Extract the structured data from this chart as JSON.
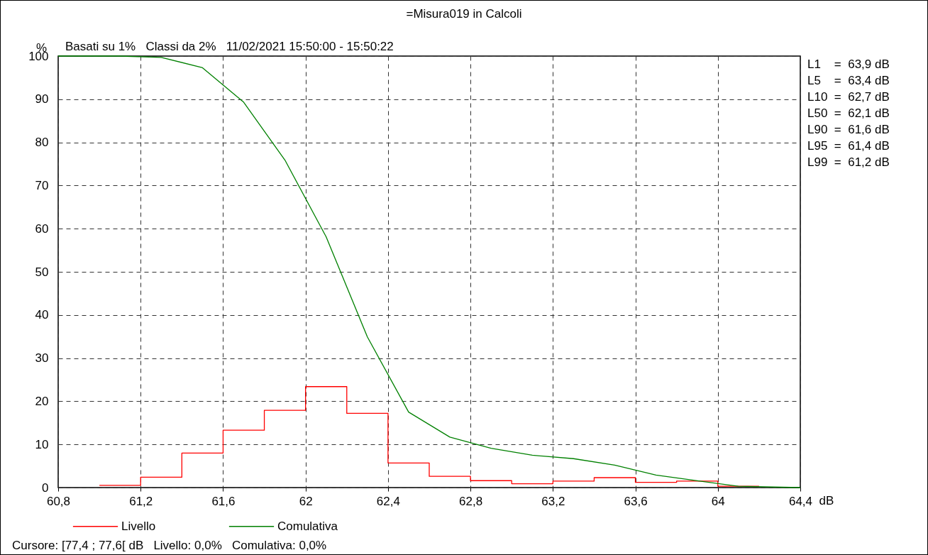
{
  "chart_data": {
    "type": "line",
    "title": "=Misura019 in Calcoli",
    "subtitle": "Basati su 1%   Classi da 2%   11/02/2021 15:50:00 - 15:50:22",
    "xlabel": "dB",
    "ylabel": "%",
    "xlim": [
      60.8,
      64.4
    ],
    "xticks": [
      {
        "value": 60.8,
        "label": "60,8"
      },
      {
        "value": 61.2,
        "label": "61,2"
      },
      {
        "value": 61.6,
        "label": "61,6"
      },
      62,
      {
        "value": 62.4,
        "label": "62,4"
      },
      {
        "value": 62.8,
        "label": "62,8"
      },
      {
        "value": 63.2,
        "label": "63,2"
      },
      {
        "value": 63.6,
        "label": "63,6"
      },
      64,
      {
        "value": 64.4,
        "label": "64,4"
      }
    ],
    "ylim": [
      0,
      100
    ],
    "yticks": [
      0,
      10,
      20,
      30,
      40,
      50,
      60,
      70,
      80,
      90,
      100
    ],
    "grid": true,
    "legend": "bottom",
    "series": [
      {
        "name": "Livello",
        "type": "step",
        "color": "#ff0000",
        "x": [
          61.0,
          61.2,
          61.4,
          61.6,
          61.8,
          62.0,
          62.2,
          62.4,
          62.6,
          62.8,
          63.0,
          63.2,
          63.4,
          63.6,
          63.8,
          64.0,
          64.2
        ],
        "values": [
          0.5,
          2.4,
          8.0,
          13.3,
          17.9,
          23.4,
          17.2,
          5.7,
          2.6,
          1.6,
          0.9,
          1.5,
          2.3,
          1.2,
          1.5,
          0.3,
          0.3
        ]
      },
      {
        "name": "Comulativa",
        "type": "line",
        "color": "#008000",
        "x": [
          60.8,
          61.1,
          61.3,
          61.5,
          61.7,
          61.9,
          62.1,
          62.3,
          62.5,
          62.7,
          62.9,
          63.1,
          63.3,
          63.5,
          63.7,
          63.9,
          64.1,
          64.4
        ],
        "values": [
          100,
          100,
          99.7,
          97.3,
          89.3,
          75.9,
          58.1,
          34.9,
          17.5,
          11.7,
          9.1,
          7.5,
          6.7,
          5.2,
          2.9,
          1.6,
          0.3,
          0
        ]
      }
    ],
    "annotations": [
      "L1    =  63,9 dB",
      "L5    =  63,4 dB",
      "L10  =  62,7 dB",
      "L50  =  62,1 dB",
      "L90  =  61,6 dB",
      "L95  =  61,4 dB",
      "L99  =  61,2 dB",
      "Cursore: [77,4 ; 77,6[ dB   Livello: 0,0%   Comulativa: 0,0%"
    ]
  }
}
